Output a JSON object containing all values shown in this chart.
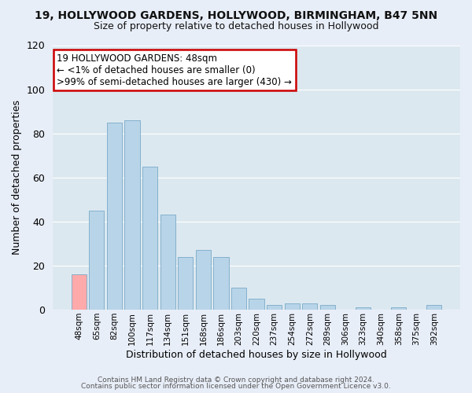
{
  "title_line1": "19, HOLLYWOOD GARDENS, HOLLYWOOD, BIRMINGHAM, B47 5NN",
  "title_line2": "Size of property relative to detached houses in Hollywood",
  "xlabel": "Distribution of detached houses by size in Hollywood",
  "ylabel": "Number of detached properties",
  "bar_labels": [
    "48sqm",
    "65sqm",
    "82sqm",
    "100sqm",
    "117sqm",
    "134sqm",
    "151sqm",
    "168sqm",
    "186sqm",
    "203sqm",
    "220sqm",
    "237sqm",
    "254sqm",
    "272sqm",
    "289sqm",
    "306sqm",
    "323sqm",
    "340sqm",
    "358sqm",
    "375sqm",
    "392sqm"
  ],
  "bar_values": [
    16,
    45,
    85,
    86,
    65,
    43,
    24,
    27,
    24,
    10,
    5,
    2,
    3,
    3,
    2,
    0,
    1,
    0,
    1,
    0,
    2
  ],
  "bar_color": "#b8d4e8",
  "highlight_bar_index": 0,
  "highlight_bar_color": "#ffaaaa",
  "ylim": [
    0,
    120
  ],
  "yticks": [
    0,
    20,
    40,
    60,
    80,
    100,
    120
  ],
  "annotation_line1": "19 HOLLYWOOD GARDENS: 48sqm",
  "annotation_line2": "← <1% of detached houses are smaller (0)",
  "annotation_line3": ">99% of semi-detached houses are larger (430) →",
  "footer_line1": "Contains HM Land Registry data © Crown copyright and database right 2024.",
  "footer_line2": "Contains public sector information licensed under the Open Government Licence v3.0.",
  "background_color": "#e8eef8",
  "grid_color": "#ffffff",
  "ax_background": "#dce8f0",
  "title1_fontsize": 10,
  "title2_fontsize": 9,
  "ylabel_fontsize": 9,
  "xlabel_fontsize": 9
}
